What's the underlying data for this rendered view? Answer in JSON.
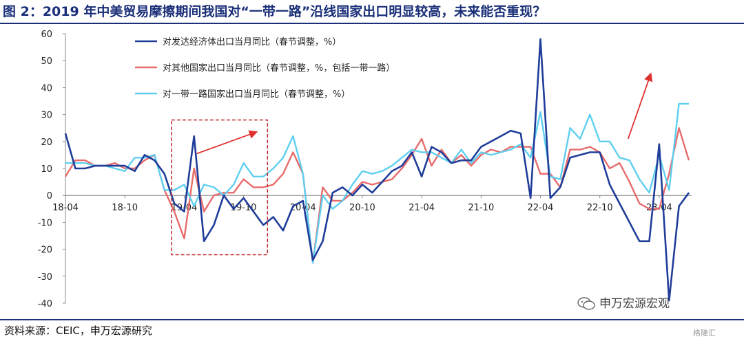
{
  "title": "图 2：2019 年中美贸易摩擦期间我国对“一带一路”沿线国家出口明显较高，未来能否重现？",
  "source": "资料来源：CEIC，申万宏源研究",
  "watermark": "申万宏源宏观",
  "watermark_corner": "格隆汇",
  "colors": {
    "title": "#1a2f78",
    "developed": "#1f3d99",
    "others": "#e86a6a",
    "belt_road": "#5ecff0",
    "highlight_box": "#c0282d",
    "arrow": "#e0302e"
  },
  "chart_data": {
    "type": "line",
    "title": "",
    "xlabel": "",
    "ylabel": "",
    "ylim": [
      -40,
      60
    ],
    "yticks": [
      -40,
      -30,
      -20,
      -10,
      0,
      10,
      20,
      30,
      40,
      50,
      60
    ],
    "x_tick_labels": [
      "18-04",
      "18-10",
      "19-04",
      "19-10",
      "20-04",
      "20-10",
      "21-04",
      "21-10",
      "22-04",
      "22-10",
      "23-04"
    ],
    "x_start": "2018-04",
    "x_end": "2023-05",
    "legend_position": "top-left",
    "series": [
      {
        "name": "对发达经济体出口当月同比（春节调整，%）",
        "color": "#1f3d99",
        "values": [
          23,
          10,
          10,
          11,
          11,
          11,
          11,
          9,
          15,
          13,
          8,
          -3,
          -6,
          22,
          -17,
          -11,
          0,
          -5,
          -1,
          -6,
          -11,
          -8,
          -13,
          -4,
          -2,
          -24,
          -17,
          1,
          3,
          0,
          4,
          1,
          5,
          9,
          11,
          16,
          7,
          18,
          16,
          12,
          13,
          13,
          18,
          20,
          22,
          24,
          23,
          -1,
          58,
          -1,
          3,
          14,
          15,
          16,
          16,
          4,
          -3,
          -10,
          -17,
          -17,
          19,
          -39,
          -4,
          1
        ]
      },
      {
        "name": "对其他国家出口当月同比（春节调整，%，包括一带一路）",
        "color": "#e86a6a",
        "values": [
          7,
          13,
          13,
          11,
          11,
          12,
          10,
          10,
          13,
          15,
          2,
          -6,
          -16,
          10,
          -6,
          0,
          1,
          1,
          6,
          3,
          3,
          4,
          8,
          16,
          8,
          -25,
          3,
          -2,
          -2,
          1,
          5,
          4,
          5,
          6,
          10,
          15,
          21,
          11,
          17,
          12,
          15,
          11,
          15,
          17,
          16,
          18,
          18,
          18,
          8,
          8,
          3,
          17,
          17,
          18,
          16,
          10,
          12,
          5,
          -3,
          -5,
          -5,
          8,
          25,
          13
        ]
      },
      {
        "name": "对一带一路国家出口当月同比（春节调整，%）",
        "color": "#5ecff0",
        "values": [
          12,
          12,
          12,
          11,
          11,
          10,
          9,
          14,
          14,
          15,
          2,
          2,
          4,
          -4,
          4,
          3,
          0,
          4,
          12,
          7,
          7,
          10,
          14,
          22,
          8,
          -25,
          0,
          -5,
          -2,
          4,
          9,
          8,
          9,
          11,
          14,
          17,
          16,
          16,
          14,
          12,
          17,
          12,
          16,
          15,
          16,
          17,
          19,
          14,
          31,
          7,
          6,
          25,
          21,
          30,
          20,
          20,
          14,
          13,
          6,
          1,
          15,
          2,
          34,
          34
        ]
      }
    ],
    "annotations": [
      "dashed box around 2019-03 to 2019-12",
      "arrow rising within box",
      "arrow rising near 2023-02"
    ]
  }
}
